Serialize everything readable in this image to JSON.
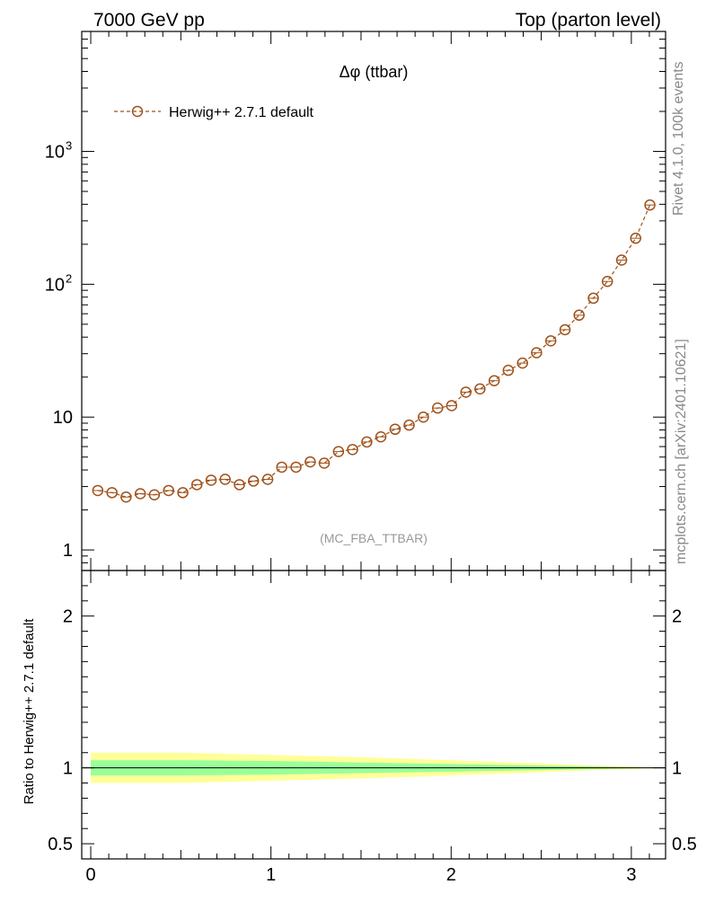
{
  "header": {
    "left": "7000 GeV pp",
    "right": "Top (parton level)"
  },
  "side_labels": {
    "rivet": "Rivet 4.1.0,  100k events",
    "mcplots": "mcplots.cern.ch [arXiv:2401.10621]"
  },
  "chart_data": [
    {
      "type": "line",
      "panel": "main",
      "title": "Δφ (ttbar)",
      "annotation": "(MC_FBA_TTBAR)",
      "yscale": "log",
      "ylim": [
        0.7,
        8000
      ],
      "xlim": [
        -0.05,
        3.19
      ],
      "y_ticks": [
        {
          "value": 1,
          "label": "1",
          "exp": ""
        },
        {
          "value": 10,
          "label": "10",
          "exp": ""
        },
        {
          "value": 100,
          "label": "10",
          "exp": "2"
        },
        {
          "value": 1000,
          "label": "10",
          "exp": "3"
        }
      ],
      "legend": {
        "position": "top-left",
        "entries": [
          "Herwig++ 2.7.1 default"
        ]
      },
      "series": [
        {
          "name": "Herwig++ 2.7.1 default",
          "color": "#a0521a",
          "x": [
            0.039,
            0.118,
            0.196,
            0.275,
            0.353,
            0.432,
            0.511,
            0.589,
            0.668,
            0.746,
            0.825,
            0.903,
            0.982,
            1.06,
            1.139,
            1.218,
            1.296,
            1.375,
            1.453,
            1.532,
            1.61,
            1.689,
            1.767,
            1.846,
            1.925,
            2.003,
            2.082,
            2.16,
            2.239,
            2.317,
            2.396,
            2.474,
            2.553,
            2.632,
            2.71,
            2.789,
            2.867,
            2.946,
            3.024,
            3.103
          ],
          "values": [
            2.8,
            2.7,
            2.5,
            2.65,
            2.6,
            2.8,
            2.7,
            3.1,
            3.35,
            3.4,
            3.1,
            3.3,
            3.4,
            4.2,
            4.2,
            4.6,
            4.5,
            5.5,
            5.7,
            6.5,
            7.1,
            8.1,
            8.7,
            10.0,
            11.7,
            12.2,
            15.4,
            16.3,
            18.8,
            22.5,
            25.5,
            30.5,
            37.5,
            45.5,
            58.5,
            78.5,
            105,
            152,
            222,
            395
          ]
        }
      ]
    },
    {
      "type": "area",
      "panel": "ratio",
      "ylabel": "Ratio to Herwig++ 2.7.1 default",
      "ylim": [
        0.4,
        2.3
      ],
      "xlim": [
        -0.05,
        3.19
      ],
      "y_ticks": [
        {
          "value": 0.5,
          "label": "0.5"
        },
        {
          "value": 1,
          "label": "1"
        },
        {
          "value": 2,
          "label": "2"
        }
      ],
      "x_ticks": [
        {
          "value": 0,
          "label": "0"
        },
        {
          "value": 1,
          "label": "1"
        },
        {
          "value": 2,
          "label": "2"
        },
        {
          "value": 3,
          "label": "3"
        }
      ],
      "reference_line": 1,
      "bands": {
        "x": [
          0.0,
          0.5,
          1.0,
          1.5,
          2.0,
          2.5,
          2.8,
          3.14
        ],
        "yellow_halfwidth": [
          0.1,
          0.1,
          0.085,
          0.07,
          0.05,
          0.03,
          0.015,
          0.004
        ],
        "green_halfwidth": [
          0.05,
          0.05,
          0.045,
          0.035,
          0.025,
          0.015,
          0.008,
          0.002
        ],
        "yellow_color": "#ffff99",
        "green_color": "#99ff99"
      }
    }
  ]
}
